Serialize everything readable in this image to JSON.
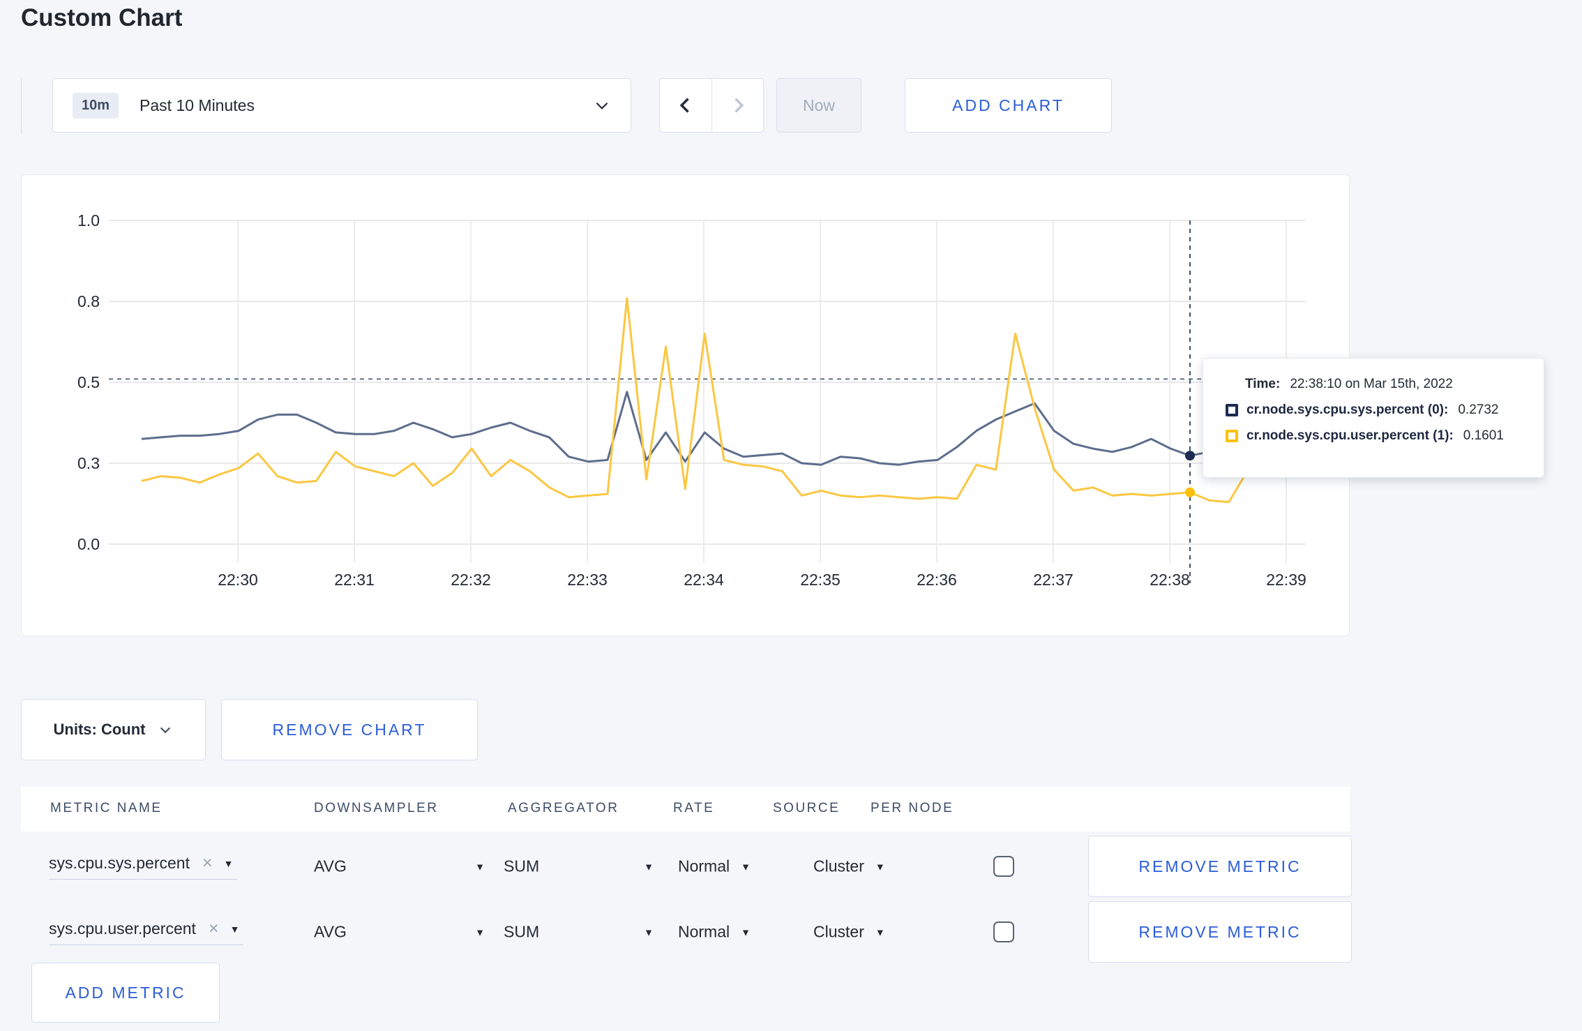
{
  "page_title": "Custom Chart",
  "toolbar": {
    "time_range": {
      "badge": "10m",
      "label": "Past 10 Minutes"
    },
    "now_label": "Now",
    "add_chart_label": "ADD CHART"
  },
  "chart_data": {
    "type": "line",
    "title": "",
    "xlabel": "",
    "ylabel": "",
    "ylim": [
      0,
      1
    ],
    "x_tick_labels": [
      "22:30",
      "22:31",
      "22:32",
      "22:33",
      "22:34",
      "22:35",
      "22:36",
      "22:37",
      "22:38",
      "22:39"
    ],
    "y_tick_labels": [
      "1.0",
      "0.8",
      "0.5",
      "0.3",
      "0.0"
    ],
    "y_tick_values": [
      1.0,
      0.75,
      0.5,
      0.25,
      0.0
    ],
    "start_time": "22:29:10",
    "interval_seconds": 10,
    "grid": true,
    "threshold_value": 0.51,
    "crosshair_index": 54,
    "crosshair_time": "22:38:10",
    "series": [
      {
        "name": "cr.node.sys.cpu.sys.percent (0)",
        "color": "#5e6d8c",
        "swatch": "#1c2b50",
        "values": [
          0.325,
          0.33,
          0.335,
          0.335,
          0.34,
          0.35,
          0.385,
          0.4,
          0.4,
          0.375,
          0.345,
          0.34,
          0.34,
          0.35,
          0.375,
          0.355,
          0.33,
          0.34,
          0.36,
          0.375,
          0.35,
          0.33,
          0.27,
          0.255,
          0.26,
          0.47,
          0.26,
          0.345,
          0.255,
          0.345,
          0.295,
          0.27,
          0.275,
          0.28,
          0.25,
          0.245,
          0.27,
          0.265,
          0.25,
          0.245,
          0.255,
          0.26,
          0.3,
          0.35,
          0.385,
          0.41,
          0.435,
          0.35,
          0.31,
          0.295,
          0.285,
          0.3,
          0.325,
          0.295,
          0.2732,
          0.285,
          0.275,
          0.3,
          0.295,
          0.285
        ]
      },
      {
        "name": "cr.node.sys.cpu.user.percent (1)",
        "color": "#fbc742",
        "swatch": "#fdc008",
        "values": [
          0.195,
          0.21,
          0.205,
          0.19,
          0.215,
          0.235,
          0.28,
          0.21,
          0.19,
          0.195,
          0.285,
          0.24,
          0.225,
          0.21,
          0.25,
          0.18,
          0.22,
          0.295,
          0.21,
          0.26,
          0.225,
          0.175,
          0.145,
          0.15,
          0.155,
          0.76,
          0.2,
          0.61,
          0.17,
          0.65,
          0.26,
          0.245,
          0.24,
          0.225,
          0.15,
          0.165,
          0.15,
          0.145,
          0.15,
          0.145,
          0.14,
          0.145,
          0.14,
          0.245,
          0.23,
          0.65,
          0.42,
          0.23,
          0.165,
          0.175,
          0.15,
          0.155,
          0.15,
          0.155,
          0.1601,
          0.135,
          0.13,
          0.23,
          0.25,
          0.21
        ]
      }
    ]
  },
  "tooltip": {
    "time_label": "Time:",
    "time_value": "22:38:10 on Mar 15th, 2022",
    "entries": [
      {
        "name": "cr.node.sys.cpu.sys.percent (0):",
        "value": "0.2732",
        "swatch": "#1c2b50"
      },
      {
        "name": "cr.node.sys.cpu.user.percent (1):",
        "value": "0.1601",
        "swatch": "#fdc008"
      }
    ]
  },
  "units_row": {
    "units_label": "Units: Count",
    "remove_chart_label": "REMOVE CHART"
  },
  "metrics_table": {
    "headers": [
      "METRIC NAME",
      "DOWNSAMPLER",
      "AGGREGATOR",
      "RATE",
      "SOURCE",
      "PER NODE"
    ],
    "rows": [
      {
        "metric": "sys.cpu.sys.percent",
        "downsampler": "AVG",
        "aggregator": "SUM",
        "rate": "Normal",
        "source": "Cluster",
        "per_node_checked": false,
        "remove_label": "REMOVE METRIC"
      },
      {
        "metric": "sys.cpu.user.percent",
        "downsampler": "AVG",
        "aggregator": "SUM",
        "rate": "Normal",
        "source": "Cluster",
        "per_node_checked": false,
        "remove_label": "REMOVE METRIC"
      }
    ],
    "add_metric_label": "ADD METRIC"
  }
}
